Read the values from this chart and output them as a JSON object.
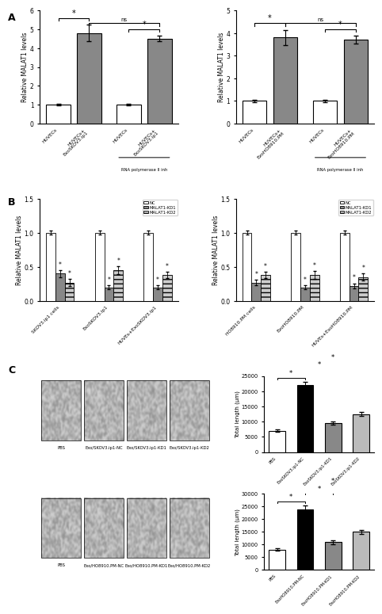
{
  "panel_A_left": {
    "categories": [
      "HUVECs",
      "HUVECs+\nExoSKOV3.ip1",
      "HUVECs",
      "HUVECs+\nExoSKOV3.ip1"
    ],
    "values": [
      1.0,
      4.8,
      1.0,
      4.5
    ],
    "errors": [
      0.05,
      0.45,
      0.05,
      0.15
    ],
    "colors": [
      "white",
      "#888888",
      "white",
      "#888888"
    ],
    "ylabel": "Relative MALAT1 levels",
    "ylim": [
      0,
      6
    ],
    "yticks": [
      0,
      1,
      2,
      3,
      4,
      5,
      6
    ],
    "rna_poly_label": "RNA polymerase II inh"
  },
  "panel_A_right": {
    "categories": [
      "HUVECs",
      "HUVECs+\nExoHO8910.PM",
      "HUVECs",
      "HUVECs+\nExoHO8910.PM"
    ],
    "values": [
      1.0,
      3.8,
      1.0,
      3.7
    ],
    "errors": [
      0.04,
      0.35,
      0.04,
      0.18
    ],
    "colors": [
      "white",
      "#888888",
      "white",
      "#888888"
    ],
    "ylabel": "Relative MALAT1 levels",
    "ylim": [
      0,
      5
    ],
    "yticks": [
      0,
      1,
      2,
      3,
      4,
      5
    ],
    "rna_poly_label": "RNA polymerase II inh"
  },
  "panel_B_left": {
    "group_labels": [
      "SKOV3.ip1 cells",
      "ExoSKOV3.ip1",
      "HUVEs+ExoSKOV3.ip1"
    ],
    "nc_values": [
      1.0,
      1.0,
      1.0
    ],
    "kd1_values": [
      0.4,
      0.2,
      0.2
    ],
    "kd2_values": [
      0.27,
      0.45,
      0.38
    ],
    "nc_errors": [
      0.03,
      0.03,
      0.03
    ],
    "kd1_errors": [
      0.05,
      0.03,
      0.03
    ],
    "kd2_errors": [
      0.05,
      0.06,
      0.05
    ],
    "ylabel": "Relative MALAT1 levels",
    "ylim": [
      0,
      1.5
    ],
    "yticks": [
      0.0,
      0.5,
      1.0,
      1.5
    ],
    "legend_labels": [
      "NC",
      "MALAT1-KD1",
      "MALAT1-KD2"
    ]
  },
  "panel_B_right": {
    "group_labels": [
      "HO8910.PM cells",
      "ExoHO8910.PM",
      "HUVEs+ExoHO8910.PM"
    ],
    "nc_values": [
      1.0,
      1.0,
      1.0
    ],
    "kd1_values": [
      0.27,
      0.2,
      0.22
    ],
    "kd2_values": [
      0.38,
      0.38,
      0.35
    ],
    "nc_errors": [
      0.03,
      0.03,
      0.03
    ],
    "kd1_errors": [
      0.04,
      0.03,
      0.04
    ],
    "kd2_errors": [
      0.05,
      0.06,
      0.05
    ],
    "ylabel": "Relative MALAT1 levels",
    "ylim": [
      0,
      1.5
    ],
    "yticks": [
      0.0,
      0.5,
      1.0,
      1.5
    ],
    "legend_labels": [
      "NC",
      "MALAT1-KD1",
      "MALAT1-KD2"
    ]
  },
  "panel_C_left_top": {
    "image_labels": [
      "PBS",
      "Exo/SKOV3.ip1-NC",
      "Exo/SKOV3.ip1-KD1",
      "Exo/SKOV3.ip1-KD2"
    ]
  },
  "panel_C_left_bottom": {
    "image_labels": [
      "PBS",
      "Exo/HO8910.PM-NC",
      "Exo/HO8910.PM-KD1",
      "Exo/HO8910.PM-KD2"
    ]
  },
  "panel_C_right_top": {
    "categories": [
      "PBS",
      "ExoSKOV3.ip1-NC",
      "ExoSKOV3.ip1-KD1",
      "ExoSKOV3.ip1-KD2"
    ],
    "values": [
      7000,
      22000,
      9500,
      12500
    ],
    "errors": [
      400,
      1200,
      600,
      700
    ],
    "colors": [
      "white",
      "black",
      "#888888",
      "#bbbbbb"
    ],
    "ylabel": "Total length (μm)",
    "ylim": [
      0,
      25000
    ],
    "yticks": [
      0,
      5000,
      10000,
      15000,
      20000,
      25000
    ]
  },
  "panel_C_right_bottom": {
    "categories": [
      "PBS",
      "ExoHO8910.PM-NC",
      "ExoHO8910.PM-KD1",
      "ExoHO8910.PM-KD2"
    ],
    "values": [
      8000,
      24000,
      11000,
      15000
    ],
    "errors": [
      500,
      1500,
      800,
      700
    ],
    "colors": [
      "white",
      "black",
      "#888888",
      "#bbbbbb"
    ],
    "ylabel": "Total length (μm)",
    "ylim": [
      0,
      30000
    ],
    "yticks": [
      0,
      5000,
      10000,
      15000,
      20000,
      25000,
      30000
    ]
  },
  "bar_edgecolor": "black",
  "background_color": "white"
}
